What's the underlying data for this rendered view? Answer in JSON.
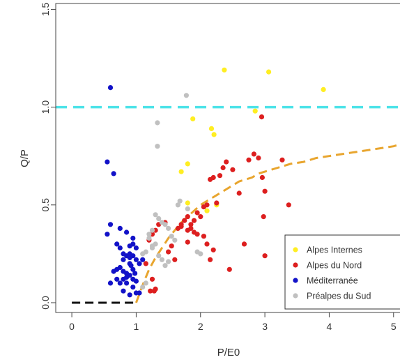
{
  "chart_data": {
    "type": "scatter",
    "xlabel": "P/E0",
    "ylabel": "Q/P",
    "xlim": [
      -0.25,
      5.1
    ],
    "ylim": [
      -0.05,
      1.53
    ],
    "x_ticks": [
      "0",
      "1",
      "2",
      "3",
      "4",
      "5"
    ],
    "y_ticks": [
      "0.0",
      "0.5",
      "1.0",
      "1.5"
    ],
    "grid": false,
    "legend_position": "bottom-right",
    "reference_lines": [
      {
        "type": "horizontal",
        "y": 1.0,
        "color": "#4de3e8",
        "style": "dashed"
      },
      {
        "type": "segment",
        "x": [
          0,
          1
        ],
        "y": [
          0,
          0
        ],
        "color": "#111111",
        "style": "dashed"
      },
      {
        "type": "curve",
        "color": "#e8a52e",
        "style": "dashed",
        "x": [
          1.0,
          1.1,
          1.2,
          1.3,
          1.4,
          1.5,
          1.6,
          1.7,
          1.8,
          1.9,
          2.0,
          2.1,
          2.2,
          2.3,
          2.4,
          2.5,
          2.6,
          2.7,
          2.8,
          2.9,
          3.0,
          3.2,
          3.4,
          3.6,
          3.8,
          4.0,
          4.2,
          4.4,
          4.6,
          4.8,
          5.0,
          5.1
        ],
        "y": [
          0.0,
          0.09,
          0.17,
          0.23,
          0.28,
          0.33,
          0.37,
          0.41,
          0.44,
          0.47,
          0.5,
          0.52,
          0.54,
          0.56,
          0.58,
          0.6,
          0.62,
          0.63,
          0.64,
          0.66,
          0.67,
          0.69,
          0.71,
          0.72,
          0.74,
          0.75,
          0.76,
          0.77,
          0.78,
          0.79,
          0.8,
          0.81
        ]
      }
    ],
    "series": [
      {
        "name": "Alpes Internes",
        "color": "#ffee22",
        "x": [
          2.37,
          3.06,
          3.91,
          2.85,
          1.88,
          2.17,
          2.21,
          1.8,
          1.7,
          1.8,
          2.1,
          2.25
        ],
        "y": [
          1.19,
          1.18,
          1.09,
          0.98,
          0.94,
          0.89,
          0.86,
          0.71,
          0.67,
          0.51,
          0.47,
          0.5
        ]
      },
      {
        "name": "Alpes du Nord",
        "color": "#dd1f1f",
        "x": [
          2.95,
          2.75,
          2.4,
          2.35,
          2.5,
          2.3,
          2.2,
          2.15,
          2.83,
          2.9,
          3.27,
          2.96,
          3.0,
          3.37,
          2.6,
          2.25,
          2.1,
          2.05,
          1.95,
          2.0,
          1.9,
          1.8,
          1.85,
          1.75,
          1.7,
          1.85,
          1.8,
          1.65,
          1.7,
          1.9,
          1.95,
          2.05,
          1.8,
          2.1,
          2.2,
          2.15,
          2.45,
          3.0,
          2.98,
          2.68,
          1.45,
          1.35,
          1.3,
          1.25,
          1.2,
          1.6,
          1.5,
          1.55,
          1.25,
          1.3,
          1.28,
          1.22,
          1.15
        ],
        "y": [
          0.95,
          0.73,
          0.72,
          0.69,
          0.68,
          0.65,
          0.64,
          0.63,
          0.76,
          0.74,
          0.73,
          0.64,
          0.57,
          0.5,
          0.56,
          0.51,
          0.5,
          0.49,
          0.46,
          0.44,
          0.42,
          0.44,
          0.4,
          0.42,
          0.39,
          0.38,
          0.37,
          0.38,
          0.4,
          0.36,
          0.35,
          0.34,
          0.31,
          0.3,
          0.27,
          0.22,
          0.17,
          0.24,
          0.44,
          0.3,
          0.41,
          0.4,
          0.37,
          0.35,
          0.32,
          0.22,
          0.26,
          0.29,
          0.12,
          0.07,
          0.06,
          0.06,
          0.2
        ]
      },
      {
        "name": "Méditerranée",
        "color": "#1212c8",
        "x": [
          0.6,
          0.55,
          0.65,
          0.6,
          0.55,
          0.75,
          0.85,
          0.95,
          0.7,
          0.8,
          0.9,
          0.9,
          0.95,
          1.0,
          0.85,
          0.8,
          0.75,
          0.7,
          0.8,
          0.85,
          0.9,
          0.92,
          0.95,
          0.98,
          1.05,
          1.1,
          1.0,
          0.95,
          0.9,
          0.85,
          0.8,
          0.75,
          0.7,
          0.65,
          0.9,
          0.95,
          1.0,
          0.85,
          0.8,
          0.9,
          1.0,
          1.05,
          0.6,
          0.75,
          0.95
        ],
        "y": [
          1.1,
          0.72,
          0.66,
          0.4,
          0.35,
          0.38,
          0.36,
          0.33,
          0.3,
          0.25,
          0.29,
          0.23,
          0.24,
          0.22,
          0.24,
          0.22,
          0.18,
          0.17,
          0.16,
          0.15,
          0.2,
          0.19,
          0.17,
          0.15,
          0.2,
          0.22,
          0.28,
          0.3,
          0.25,
          0.13,
          0.12,
          0.1,
          0.12,
          0.16,
          0.14,
          0.12,
          0.11,
          0.1,
          0.06,
          0.04,
          0.05,
          0.05,
          0.1,
          0.28,
          0.08
        ]
      },
      {
        "name": "Préalpes du Sud",
        "color": "#c0c0c0",
        "x": [
          1.78,
          1.33,
          1.33,
          1.68,
          1.65,
          1.8,
          1.3,
          1.35,
          1.4,
          1.45,
          1.5,
          1.25,
          1.2,
          1.55,
          1.6,
          1.3,
          1.25,
          1.15,
          1.1,
          1.2,
          1.95,
          2.0,
          1.4,
          1.35,
          1.5,
          1.45,
          1.1,
          1.15,
          1.25
        ],
        "y": [
          1.06,
          0.92,
          0.8,
          0.52,
          0.5,
          0.48,
          0.45,
          0.43,
          0.41,
          0.4,
          0.38,
          0.37,
          0.35,
          0.34,
          0.32,
          0.3,
          0.28,
          0.26,
          0.25,
          0.33,
          0.26,
          0.25,
          0.22,
          0.24,
          0.21,
          0.19,
          0.08,
          0.1,
          0.29
        ]
      }
    ]
  }
}
